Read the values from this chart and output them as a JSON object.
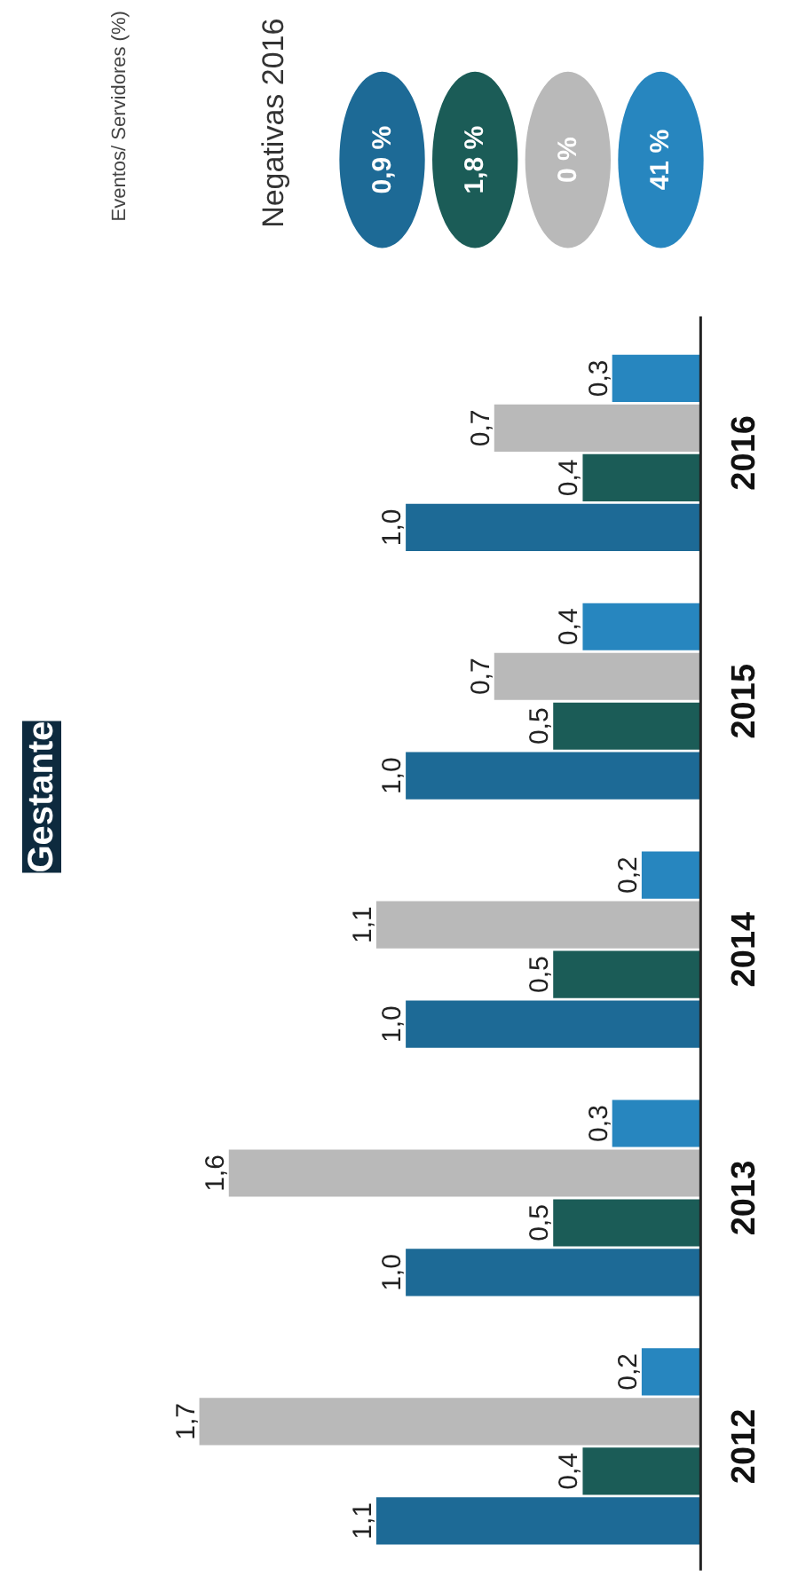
{
  "chart_data": {
    "type": "bar",
    "orientation": "horizontal",
    "title": "Gestante",
    "subtitle": "Eventos/ Servidores (%)",
    "categories": [
      "2016",
      "2015",
      "2014",
      "2013",
      "2012"
    ],
    "series": [
      {
        "color": "#1d6a96",
        "values": [
          1.0,
          1.0,
          1.0,
          1.0,
          1.1
        ],
        "value_labels": [
          "1,0",
          "1,0",
          "1,0",
          "1,0",
          "1,1"
        ]
      },
      {
        "color": "#1b5c57",
        "values": [
          0.4,
          0.5,
          0.5,
          0.5,
          0.4
        ],
        "value_labels": [
          "0,4",
          "0,5",
          "0,5",
          "0,5",
          "0,4"
        ]
      },
      {
        "color": "#b9b9b9",
        "values": [
          0.7,
          0.7,
          1.1,
          1.6,
          1.7
        ],
        "value_labels": [
          "0,7",
          "0,7",
          "1,1",
          "1,6",
          "1,7"
        ]
      },
      {
        "color": "#2786bf",
        "values": [
          0.3,
          0.4,
          0.2,
          0.3,
          0.2
        ],
        "value_labels": [
          "0,3",
          "0,4",
          "0,2",
          "0,3",
          "0,2"
        ]
      }
    ],
    "annotations": [
      "Negativas 2016",
      "0,9 %",
      "1,8 %",
      "0 %",
      "41 %"
    ],
    "grid": false
  }
}
